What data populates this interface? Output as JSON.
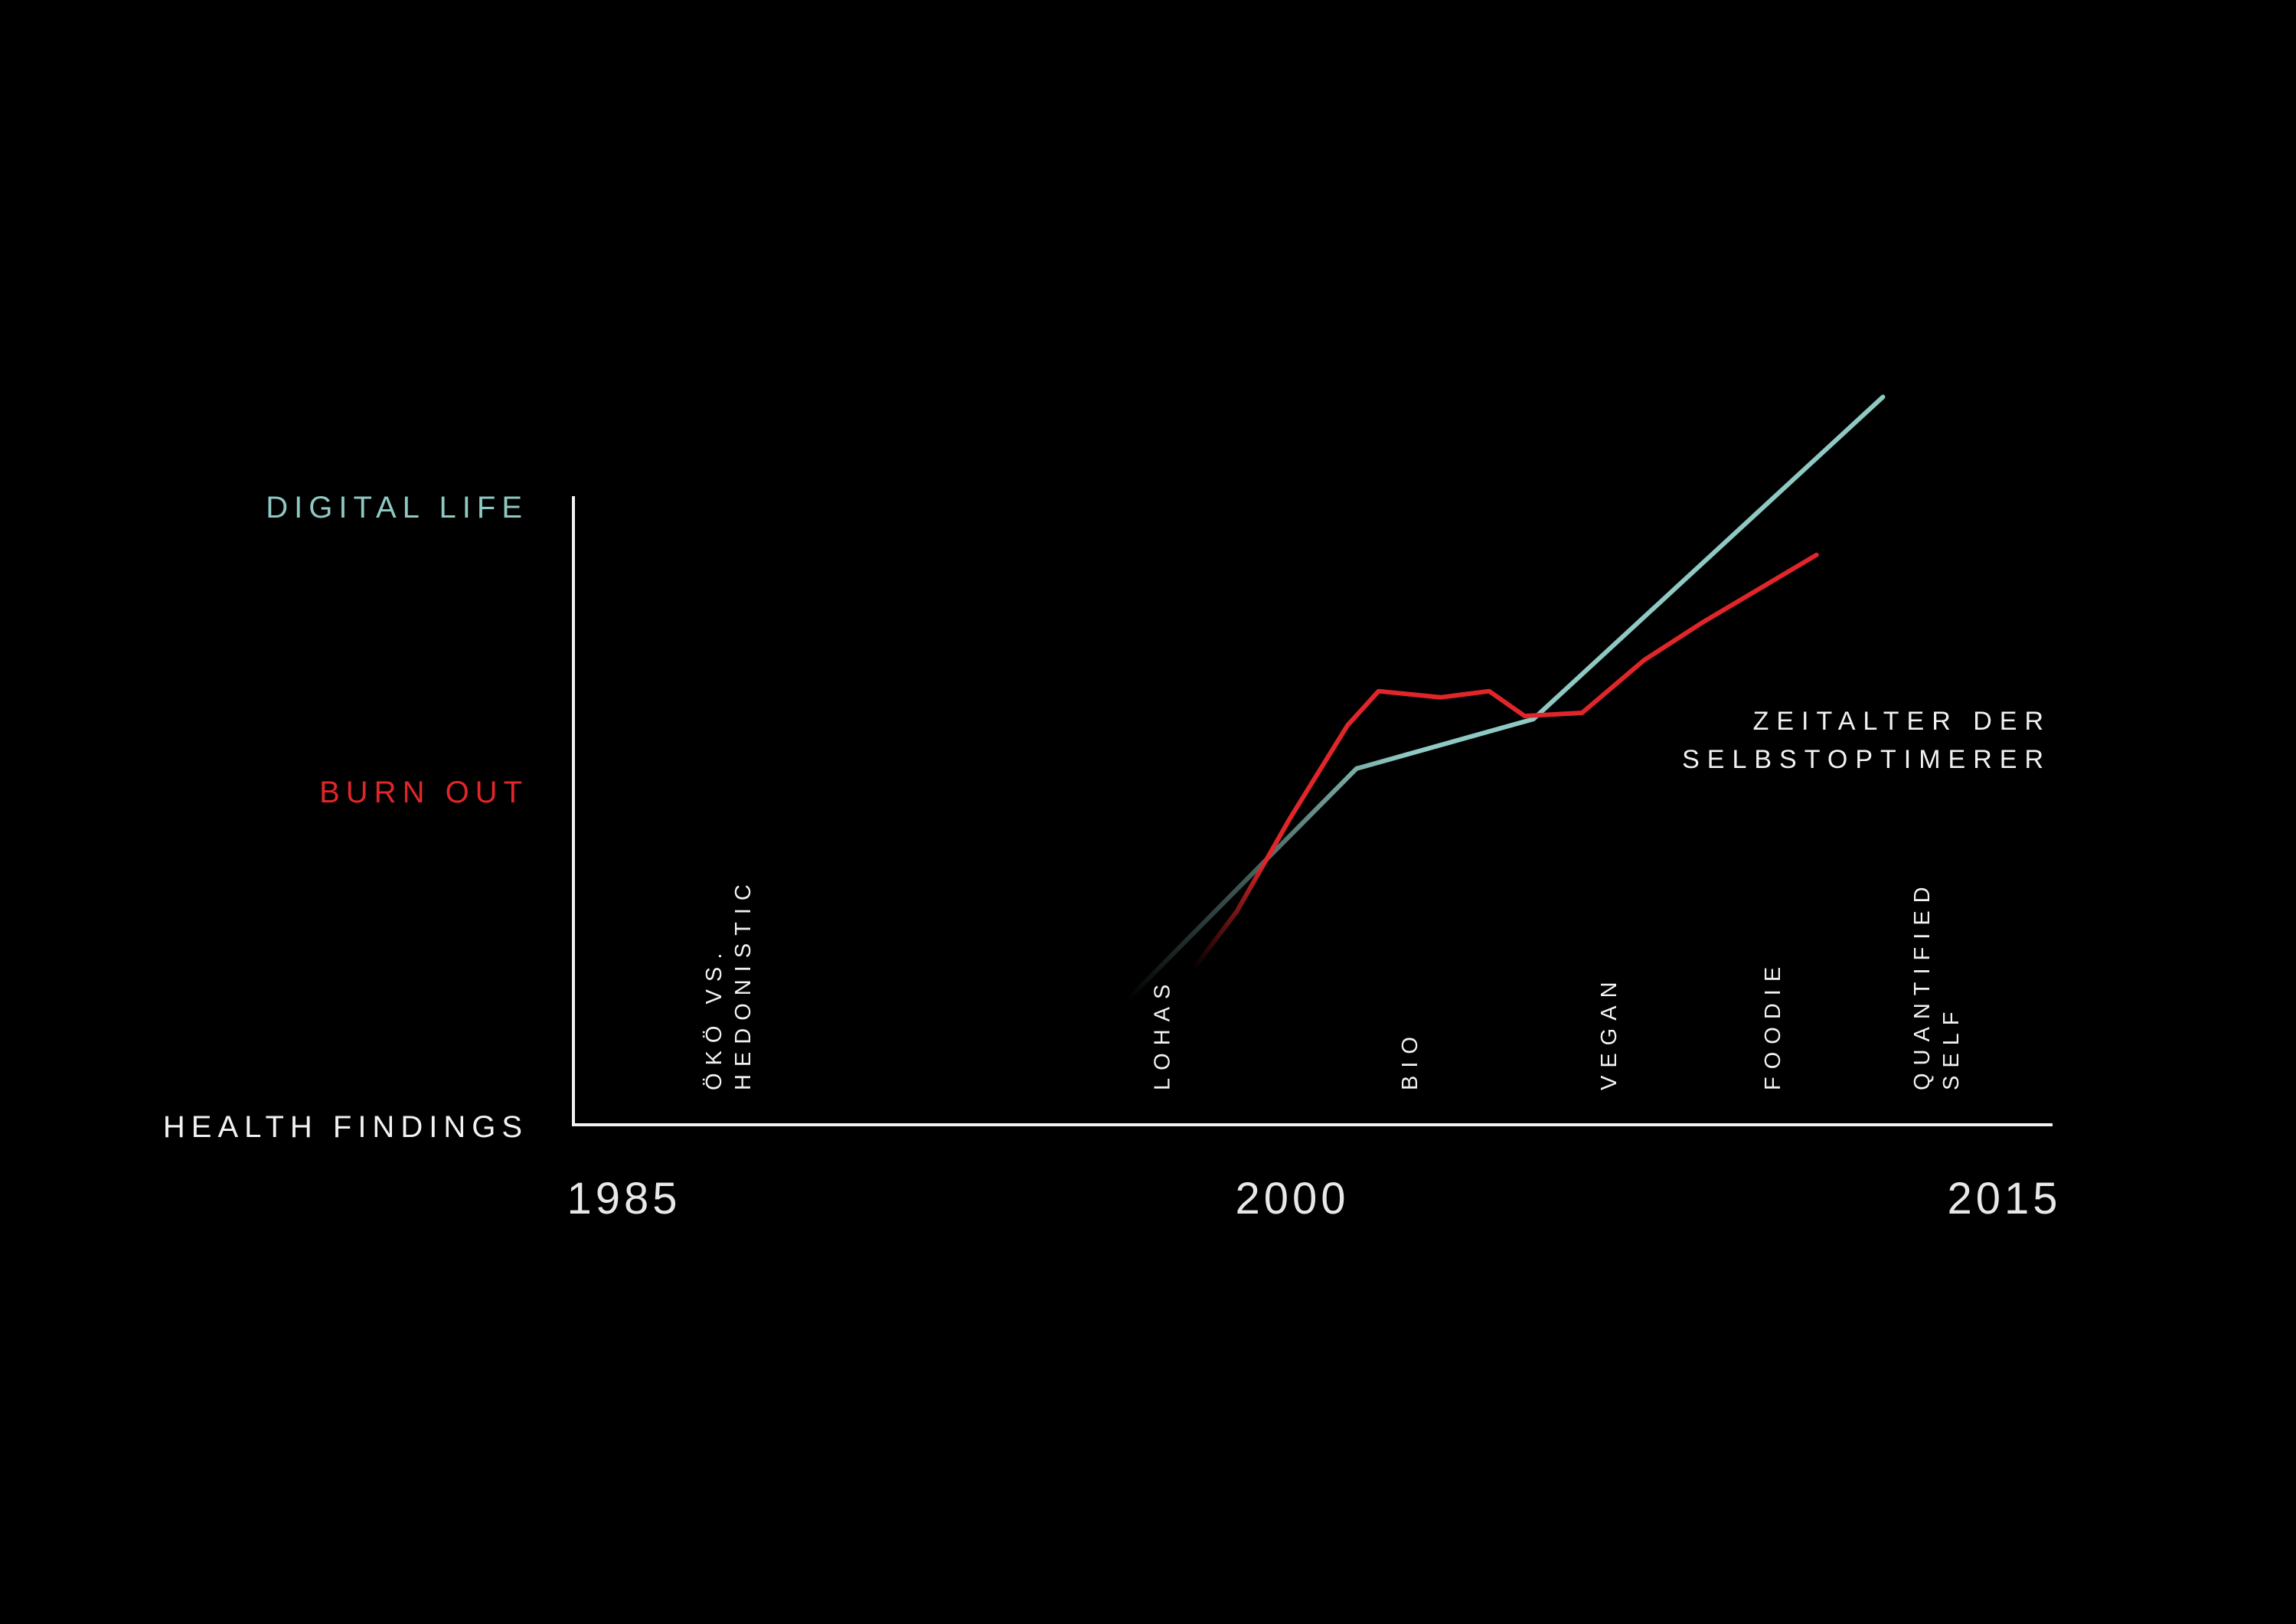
{
  "colors": {
    "background": "#000000",
    "axis": "#f2f2f2",
    "digital_life": "#8fc9c3",
    "burn_out": "#e0262a",
    "text": "#f2f2f2"
  },
  "chart_data": {
    "type": "line",
    "title": "",
    "x_ticks": [
      "1985",
      "2000",
      "2015"
    ],
    "xlim": [
      1985,
      2018.4
    ],
    "ylim": [
      0,
      100
    ],
    "grid": false,
    "legend": "none",
    "y_category_labels": [
      {
        "text": "DIGITAL LIFE",
        "color": "#8fc9c3",
        "y": 100
      },
      {
        "text": "BURN OUT",
        "color": "#e0262a",
        "y": 54
      },
      {
        "text": "HEALTH FINDINGS",
        "color": "#f2f2f2",
        "y": 0
      }
    ],
    "series": [
      {
        "name": "DIGITAL LIFE",
        "color": "#8fc9c3",
        "points": [
          [
            1997.5,
            20
          ],
          [
            2002.7,
            57.5
          ],
          [
            2006.7,
            65.5
          ],
          [
            2014.6,
            117.5
          ]
        ]
      },
      {
        "name": "BURN OUT",
        "color": "#e0262a",
        "points": [
          [
            1999.0,
            25
          ],
          [
            2000.0,
            34.5
          ],
          [
            2001.2,
            49.5
          ],
          [
            2002.5,
            64.5
          ],
          [
            2003.2,
            70
          ],
          [
            2004.6,
            69
          ],
          [
            2005.7,
            70
          ],
          [
            2006.5,
            66
          ],
          [
            2007.8,
            66.5
          ],
          [
            2009.2,
            75
          ],
          [
            2010.5,
            81
          ],
          [
            2013.1,
            92
          ]
        ]
      }
    ],
    "era_labels": [
      {
        "lines": [
          "ÖKÖ VS.",
          "HEDONISTIC"
        ],
        "x": 1988.5
      },
      {
        "lines": [
          "LOHAS"
        ],
        "x": 1998.3
      },
      {
        "lines": [
          "BIO"
        ],
        "x": 2003.9
      },
      {
        "lines": [
          "VEGAN"
        ],
        "x": 2008.4
      },
      {
        "lines": [
          "FOODIE"
        ],
        "x": 2012.1
      },
      {
        "lines": [
          "QUANTIFIED",
          "SELF"
        ],
        "x": 2015.8
      }
    ],
    "annotation": {
      "lines": [
        "ZEITALTER DER",
        "SELBSTOPTIMERER"
      ],
      "x": 2018.4,
      "y": 65
    }
  }
}
